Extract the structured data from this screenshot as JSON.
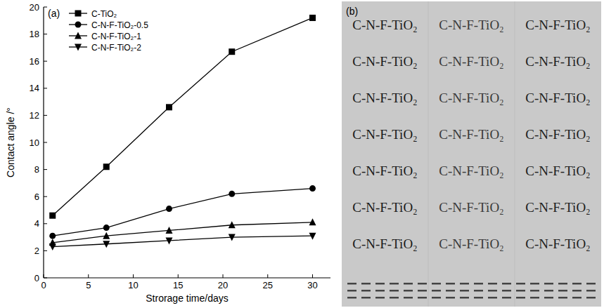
{
  "chart_data": {
    "type": "line",
    "panel_label": "(a)",
    "x_label": "Strorage time/days",
    "y_label": "Contact angle /°",
    "x": [
      1,
      7,
      14,
      21,
      30
    ],
    "series": [
      {
        "name": "C-TiO₂",
        "color": "#000000",
        "marker": "square",
        "values": [
          4.6,
          8.2,
          12.6,
          16.7,
          19.2
        ]
      },
      {
        "name": "C-N-F-TiO₂-0.5",
        "color": "#000000",
        "marker": "circle",
        "values": [
          3.1,
          3.7,
          5.1,
          6.2,
          6.6
        ]
      },
      {
        "name": "C-N-F-TiO₂-1",
        "color": "#000000",
        "marker": "triangle-up",
        "values": [
          2.6,
          3.1,
          3.5,
          3.9,
          4.1
        ]
      },
      {
        "name": "C-N-F-TiO₂-2",
        "color": "#000000",
        "marker": "triangle-down",
        "values": [
          2.3,
          2.5,
          2.75,
          3.0,
          3.1
        ]
      }
    ],
    "xlim": [
      0,
      32
    ],
    "xticks": [
      0,
      5,
      10,
      15,
      20,
      25,
      30
    ],
    "ylim": [
      0,
      20
    ],
    "yticks": [
      0,
      2,
      4,
      6,
      8,
      10,
      12,
      14,
      16,
      18,
      20
    ],
    "legend": "upper left",
    "grid": false
  },
  "photo": {
    "panel_label": "(b)",
    "rows": [
      [
        "C-N-F-TiO₂",
        "C-N-F-TiO₂",
        "C-N-F-TiO₂"
      ],
      [
        "C-N-F-TiO₂",
        "C-N-F-TiO₂",
        "C-N-F-TiO₂"
      ],
      [
        "C-N-F-TiO₂",
        "C-N-F-TiO₂",
        "C-N-F-TiO₂"
      ],
      [
        "C-N-F-TiO₂",
        "C-N-F-TiO₂",
        "C-N-F-TiO₂"
      ],
      [
        "C-N-F-TiO₂",
        "C-N-F-TiO₂",
        "C-N-F-TiO₂"
      ],
      [
        "C-N-F-TiO₂",
        "C-N-F-TiO₂",
        "C-N-F-TiO₂"
      ],
      [
        "C-N-F-TiO₂",
        "C-N-F-TiO₂",
        "C-N-F-TiO₂"
      ]
    ]
  }
}
